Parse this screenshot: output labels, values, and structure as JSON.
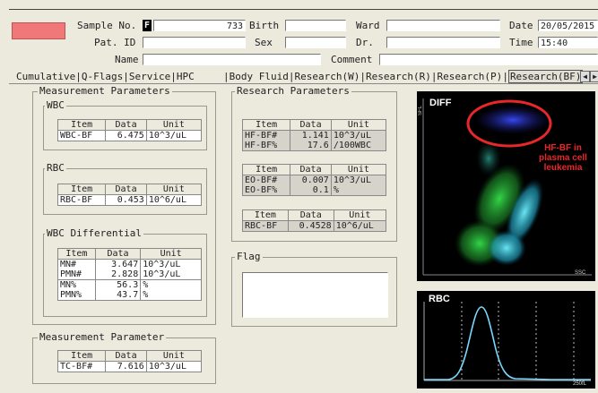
{
  "header": {
    "sample_no_label": "Sample No.",
    "sample_no_prefix": "F",
    "sample_no_value": "733",
    "birth_label": "Birth",
    "ward_label": "Ward",
    "date_label": "Date",
    "date_value": "20/05/2015",
    "pat_id_label": "Pat. ID",
    "sex_label": "Sex",
    "dr_label": "Dr.",
    "time_label": "Time",
    "time_value": "15:40",
    "name_label": "Name",
    "comment_label": "Comment",
    "status_color": "#f07878"
  },
  "tabs": [
    "Cumulative",
    "Q-Flags",
    "Service",
    "HPC",
    "Body Fluid",
    "Research(W)",
    "Research(R)",
    "Research(P)",
    "Research(BF)"
  ],
  "measurement": {
    "title": "Measurement Parameters",
    "wbc": {
      "title": "WBC",
      "cols": [
        "Item",
        "Data",
        "Unit"
      ],
      "rows": [
        [
          "WBC-BF",
          "6.475",
          "10^3/uL"
        ]
      ]
    },
    "rbc": {
      "title": "RBC",
      "cols": [
        "Item",
        "Data",
        "Unit"
      ],
      "rows": [
        [
          "RBC-BF",
          "0.453",
          "10^6/uL"
        ]
      ]
    },
    "diff": {
      "title": "WBC Differential",
      "cols": [
        "Item",
        "Data",
        "Unit"
      ],
      "rows": [
        [
          "MN#",
          "3.647",
          "10^3/uL"
        ],
        [
          "PMN#",
          "2.828",
          "10^3/uL"
        ],
        [
          "MN%",
          "56.3",
          "%"
        ],
        [
          "PMN%",
          "43.7",
          "%"
        ]
      ]
    }
  },
  "measurement2": {
    "title": "Measurement Parameter",
    "cols": [
      "Item",
      "Data",
      "Unit"
    ],
    "rows": [
      [
        "TC-BF#",
        "7.616",
        "10^3/uL"
      ]
    ]
  },
  "research": {
    "title": "Research Parameters",
    "t1": {
      "cols": [
        "Item",
        "Data",
        "Unit"
      ],
      "rows": [
        [
          "HF-BF#",
          "1.141",
          "10^3/uL"
        ],
        [
          "HF-BF%",
          "17.6",
          "/100WBC"
        ]
      ]
    },
    "t2": {
      "cols": [
        "Item",
        "Data",
        "Unit"
      ],
      "rows": [
        [
          "EO-BF#",
          "0.007",
          "10^3/uL"
        ],
        [
          "EO-BF%",
          "0.1",
          "%"
        ]
      ]
    },
    "t3": {
      "cols": [
        "Item",
        "Data",
        "Unit"
      ],
      "rows": [
        [
          "RBC-BF",
          "0.4528",
          "10^6/uL"
        ]
      ]
    }
  },
  "flag": {
    "title": "Flag"
  },
  "diff_plot": {
    "title": "DIFF",
    "y_label": "SFL",
    "x_label": "SSC",
    "annotation": "HF-BF in plasma cell leukemia",
    "annotation_color": "#e8272b"
  },
  "rbc_plot": {
    "title": "RBC",
    "x_label": "250fL"
  }
}
